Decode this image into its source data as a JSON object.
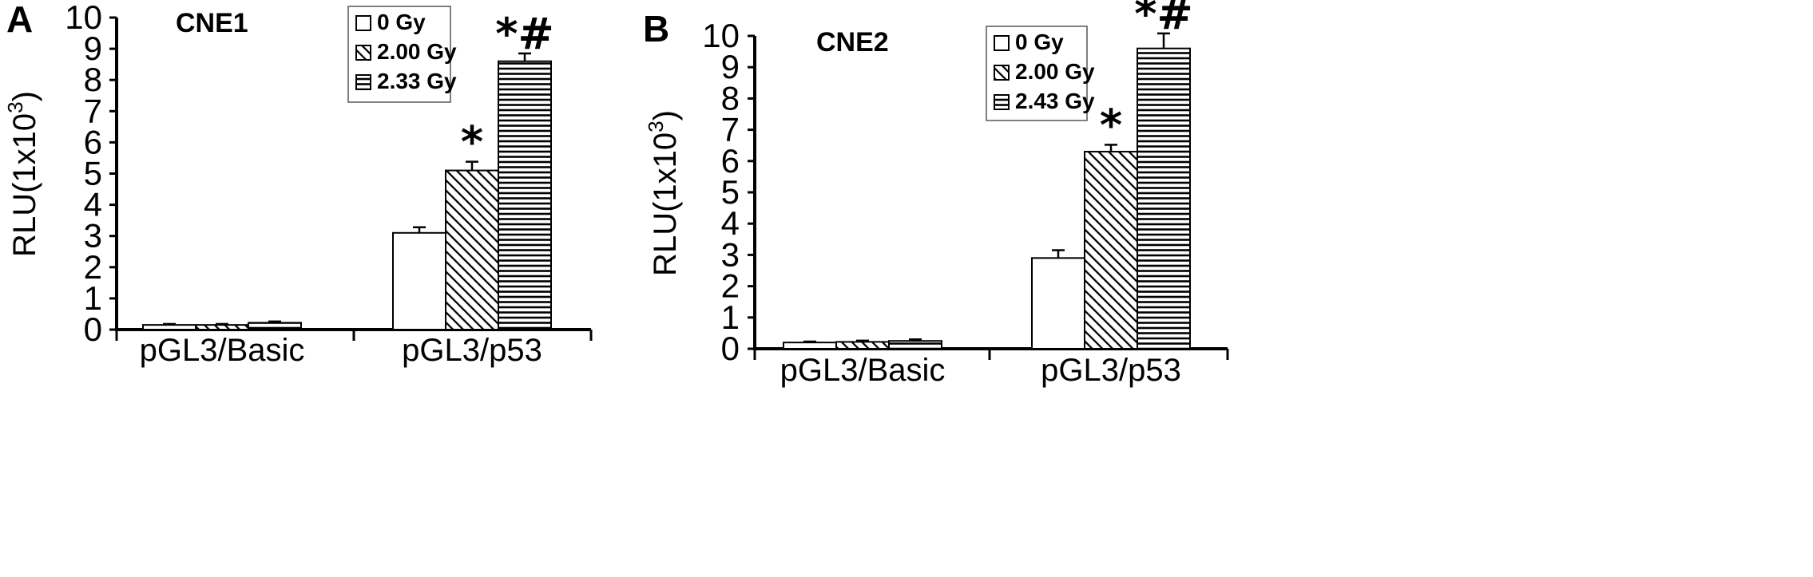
{
  "chart_data": [
    {
      "panel": "A",
      "type": "bar",
      "title": "CNE1",
      "ylabel": "RLU(1x10",
      "ylabel_sup": "3",
      "ylabel_close": ")",
      "ylim": [
        0,
        10
      ],
      "yticks": [
        "0",
        "1",
        "2",
        "3",
        "4",
        "5",
        "6",
        "7",
        "8",
        "9",
        "10"
      ],
      "categories": [
        "pGL3/Basic",
        "pGL3/p53"
      ],
      "legend_position": "top-right",
      "series": [
        {
          "name": "0 Gy",
          "pattern": "white",
          "values": [
            0.15,
            3.1
          ],
          "errors": [
            0.03,
            0.18
          ],
          "marks": [
            "",
            ""
          ]
        },
        {
          "name": "2.00 Gy",
          "pattern": "diagonal",
          "values": [
            0.15,
            5.1
          ],
          "errors": [
            0.03,
            0.28
          ],
          "marks": [
            "",
            "*"
          ]
        },
        {
          "name": "2.33 Gy",
          "pattern": "horizontal",
          "values": [
            0.22,
            8.6
          ],
          "errors": [
            0.04,
            0.25
          ],
          "marks": [
            "",
            "*#"
          ]
        }
      ]
    },
    {
      "panel": "B",
      "type": "bar",
      "title": "CNE2",
      "ylabel": "RLU(1x10",
      "ylabel_sup": "3",
      "ylabel_close": ")",
      "ylim": [
        0,
        10
      ],
      "yticks": [
        "0",
        "1",
        "2",
        "3",
        "4",
        "5",
        "6",
        "7",
        "8",
        "9",
        "10"
      ],
      "categories": [
        "pGL3/Basic",
        "pGL3/p53"
      ],
      "legend_position": "top-right",
      "series": [
        {
          "name": "0 Gy",
          "pattern": "white",
          "values": [
            0.2,
            2.9
          ],
          "errors": [
            0.03,
            0.25
          ],
          "marks": [
            "",
            ""
          ]
        },
        {
          "name": "2.00 Gy",
          "pattern": "diagonal",
          "values": [
            0.22,
            6.3
          ],
          "errors": [
            0.04,
            0.22
          ],
          "marks": [
            "",
            "*"
          ]
        },
        {
          "name": "2.43 Gy",
          "pattern": "horizontal",
          "values": [
            0.25,
            9.6
          ],
          "errors": [
            0.05,
            0.48
          ],
          "marks": [
            "",
            "*#"
          ]
        }
      ]
    }
  ]
}
